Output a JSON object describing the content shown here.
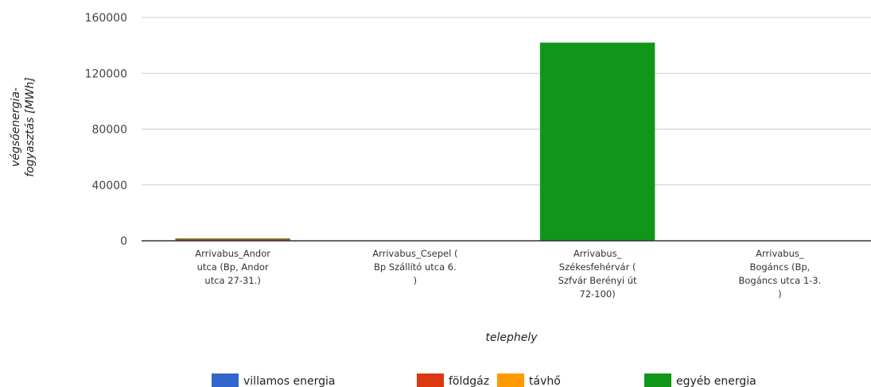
{
  "chart_data": {
    "type": "bar",
    "stacked": true,
    "xlabel": "telephely",
    "ylabel": "végsőenergia-fogyasztás [MWh]",
    "ylabel_lines": [
      "végsőenergia-",
      "fogyasztás [MWh]"
    ],
    "ylim": [
      0,
      160000
    ],
    "yticks": [
      0,
      40000,
      80000,
      120000,
      160000
    ],
    "grid": true,
    "legend_position": "bottom",
    "categories": [
      "Arrivabus_Andor utca (Bp, Andor utca 27-31.)",
      "Arrivabus_Csepel ( Bp Szállító utca 6. )",
      "Arrivabus_ Székesfehérvár ( Szfvár Berényi út 72-100)",
      "Arrivabus_ Bogáncs (Bp, Bogáncs utca 1-3. )"
    ],
    "category_lines": [
      [
        "Arrivabus_Andor",
        "utca (Bp, Andor",
        "utca 27-31.)"
      ],
      [
        "Arrivabus_Csepel (",
        "Bp Szállító utca 6.",
        ")"
      ],
      [
        "Arrivabus_",
        "Székesfehérvár (",
        "Szfvár Berényi út",
        "72-100)"
      ],
      [
        "Arrivabus_",
        "Bogáncs (Bp,",
        "Bogáncs utca 1-3.",
        ")"
      ]
    ],
    "series": [
      {
        "name": "villamos energia",
        "color": "#3366cc",
        "values": [
          300,
          0,
          0,
          0
        ]
      },
      {
        "name": "földgáz",
        "color": "#dc3912",
        "values": [
          900,
          0,
          0,
          0
        ]
      },
      {
        "name": "távhő",
        "color": "#ff9900",
        "values": [
          0,
          0,
          0,
          0
        ]
      },
      {
        "name": "egyéb energia",
        "color": "#109618",
        "values": [
          500,
          0,
          142000,
          0
        ]
      }
    ]
  }
}
